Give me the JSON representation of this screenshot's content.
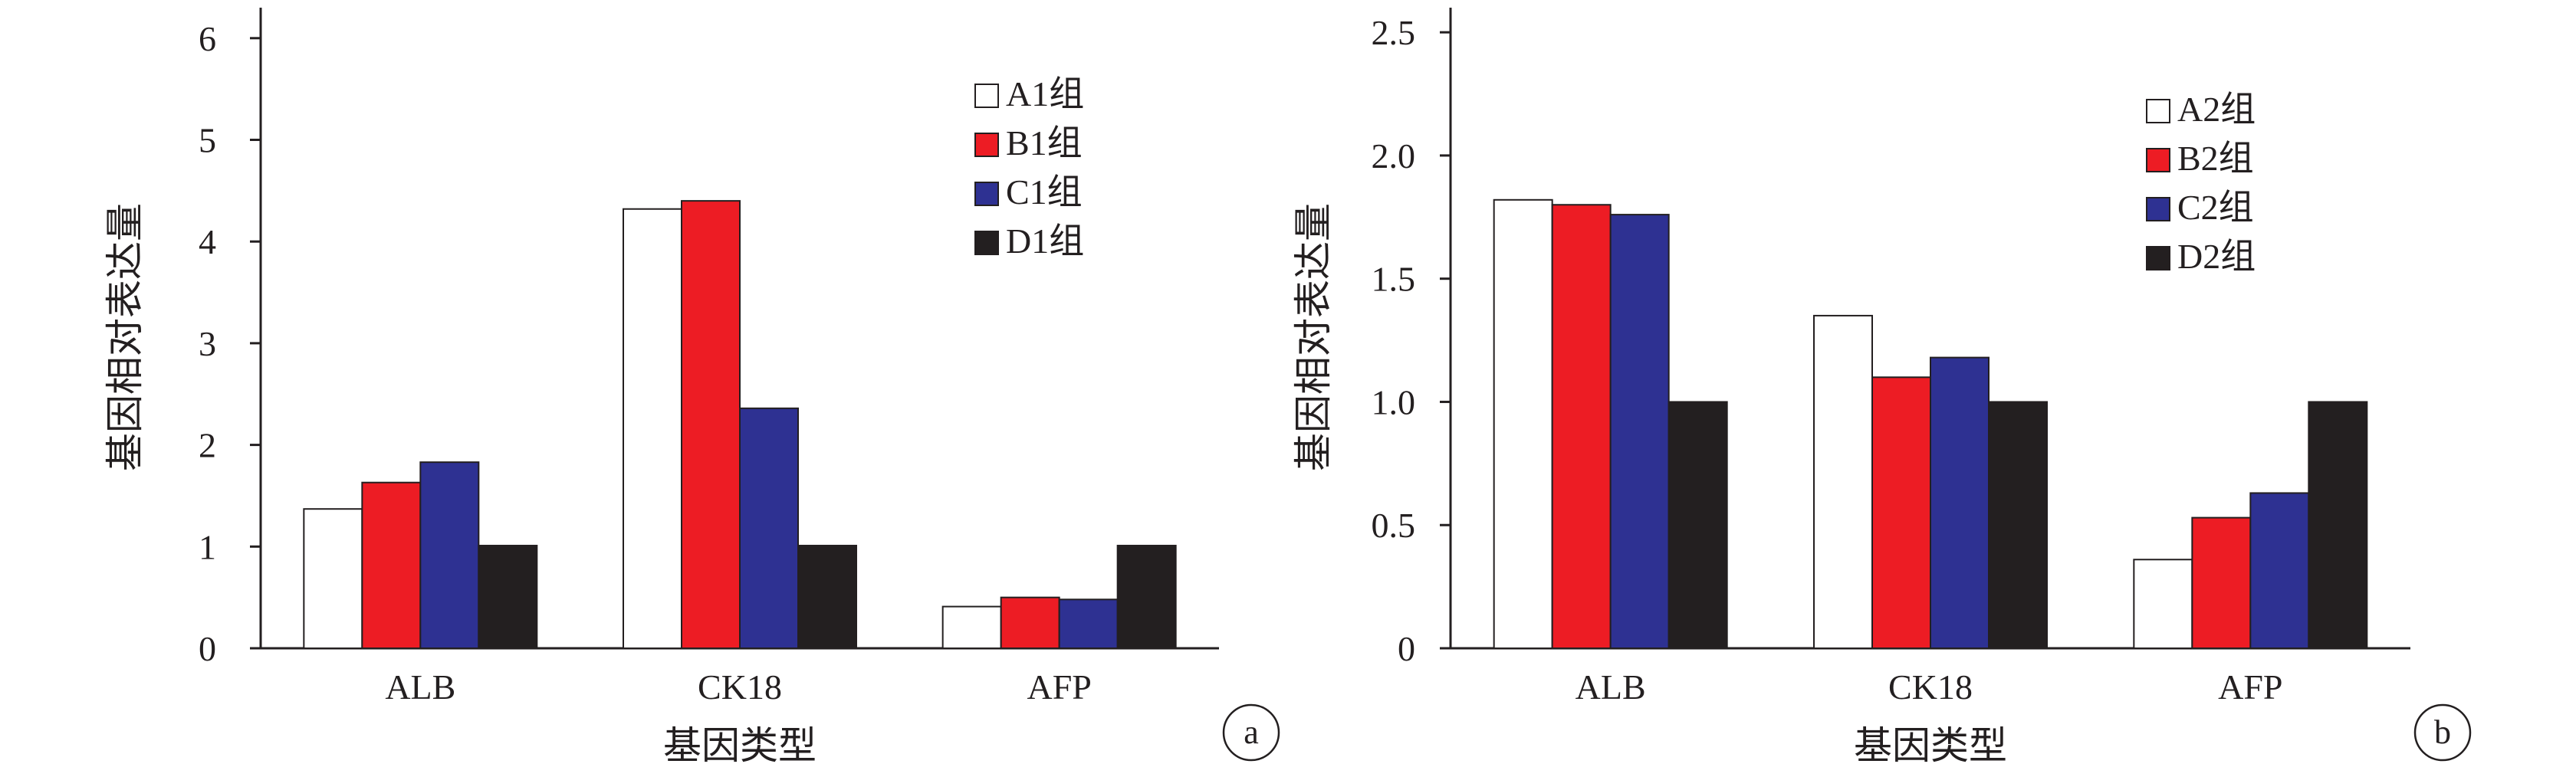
{
  "colors": {
    "A": "#ffffff",
    "B": "#ed1c24",
    "C": "#2e3192",
    "D": "#231f20",
    "axis": "#231f20"
  },
  "chart_data": [
    {
      "type": "bar",
      "panel_label": "a",
      "categories": [
        "ALB",
        "CK18",
        "AFP"
      ],
      "xlabel": "基因类型",
      "ylabel": "基因相对表达量",
      "ylim": [
        0,
        6.3
      ],
      "yticks": [
        "0",
        "1",
        "2",
        "3",
        "4",
        "5",
        "6"
      ],
      "ytick_values": [
        0,
        1,
        2,
        3,
        4,
        5,
        6
      ],
      "legend_position": "top-right",
      "series": [
        {
          "name": "A1组",
          "values": [
            1.37,
            4.32,
            0.41
          ]
        },
        {
          "name": "B1组",
          "values": [
            1.63,
            4.4,
            0.5
          ]
        },
        {
          "name": "C1组",
          "values": [
            1.83,
            2.36,
            0.48
          ]
        },
        {
          "name": "D1组",
          "values": [
            1.01,
            1.01,
            1.01
          ]
        }
      ]
    },
    {
      "type": "bar",
      "panel_label": "b",
      "categories": [
        "ALB",
        "CK18",
        "AFP"
      ],
      "xlabel": "基因类型",
      "ylabel": "基因相对表达量",
      "ylim": [
        0,
        2.6
      ],
      "yticks": [
        "0",
        "0.5",
        "1.0",
        "1.5",
        "2.0",
        "2.5"
      ],
      "ytick_values": [
        0,
        0.5,
        1.0,
        1.5,
        2.0,
        2.5
      ],
      "legend_position": "top-right",
      "series": [
        {
          "name": "A2组",
          "values": [
            1.82,
            1.35,
            0.36
          ]
        },
        {
          "name": "B2组",
          "values": [
            1.8,
            1.1,
            0.53
          ]
        },
        {
          "name": "C2组",
          "values": [
            1.76,
            1.18,
            0.63
          ]
        },
        {
          "name": "D2组",
          "values": [
            1.0,
            1.0,
            1.0
          ]
        }
      ]
    }
  ]
}
